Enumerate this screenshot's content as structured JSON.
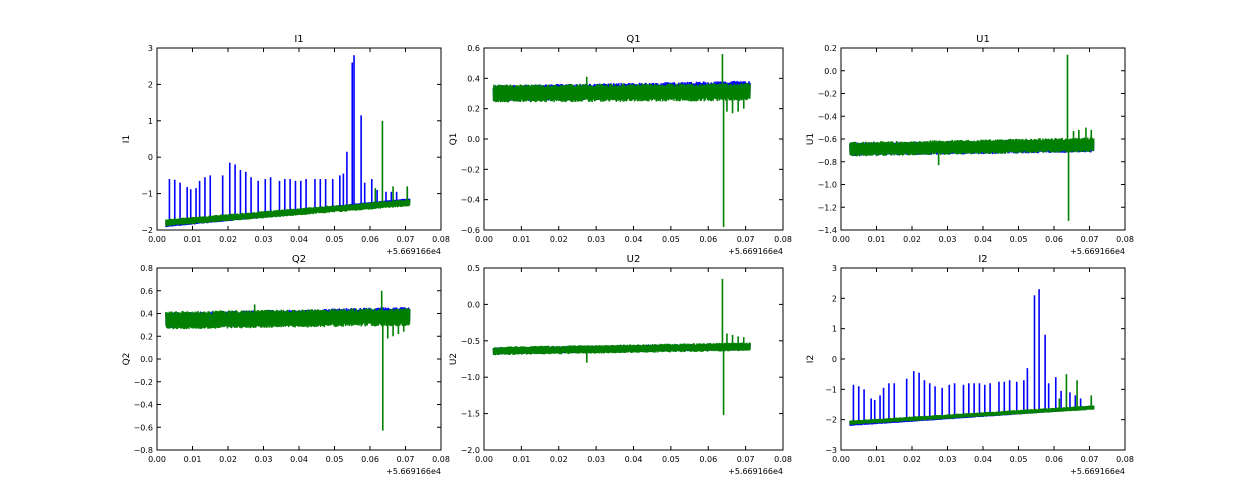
{
  "colors": {
    "series_blue": "#0000ff",
    "series_green": "#007f00",
    "axes": "#000000",
    "background": "#ffffff"
  },
  "chart_data": [
    {
      "type": "line",
      "title": "I1",
      "ylabel": "I1",
      "xlabel": "",
      "x_offset_label": "+5.669166e4",
      "xlim": [
        0.0,
        0.08
      ],
      "ylim": [
        -2,
        3
      ],
      "xticks": [
        "0.00",
        "0.01",
        "0.02",
        "0.03",
        "0.04",
        "0.05",
        "0.06",
        "0.07",
        "0.08"
      ],
      "yticks": [
        "−2",
        "−1",
        "0",
        "1",
        "2",
        "3"
      ],
      "grid": false,
      "series": [
        {
          "color": "blue",
          "x_range": [
            0.0025,
            0.0712
          ],
          "baseline": [
            -1.85,
            -1.2
          ],
          "band": 0.15,
          "spikes": [
            [
              0.0035,
              -0.6
            ],
            [
              0.005,
              -0.62
            ],
            [
              0.0065,
              -0.7
            ],
            [
              0.0085,
              -0.82
            ],
            [
              0.0095,
              -0.88
            ],
            [
              0.011,
              -0.85
            ],
            [
              0.012,
              -0.65
            ],
            [
              0.0135,
              -0.55
            ],
            [
              0.015,
              -0.5
            ],
            [
              0.0185,
              -0.5
            ],
            [
              0.0205,
              -0.15
            ],
            [
              0.022,
              -0.2
            ],
            [
              0.0235,
              -0.35
            ],
            [
              0.025,
              -0.4
            ],
            [
              0.0265,
              -0.55
            ],
            [
              0.0285,
              -0.65
            ],
            [
              0.0305,
              -0.6
            ],
            [
              0.032,
              -0.55
            ],
            [
              0.0345,
              -0.65
            ],
            [
              0.036,
              -0.6
            ],
            [
              0.0375,
              -0.6
            ],
            [
              0.039,
              -0.65
            ],
            [
              0.0405,
              -0.65
            ],
            [
              0.042,
              -0.6
            ],
            [
              0.0445,
              -0.6
            ],
            [
              0.046,
              -0.6
            ],
            [
              0.0475,
              -0.6
            ],
            [
              0.0495,
              -0.6
            ],
            [
              0.0515,
              -0.5
            ],
            [
              0.0525,
              -0.45
            ],
            [
              0.0535,
              0.15
            ],
            [
              0.055,
              2.6
            ],
            [
              0.0555,
              2.8
            ],
            [
              0.0575,
              1.15
            ],
            [
              0.0585,
              -0.7
            ],
            [
              0.0605,
              -0.6
            ],
            [
              0.062,
              -0.9
            ],
            [
              0.0645,
              -0.95
            ],
            [
              0.066,
              -0.95
            ],
            [
              0.0675,
              -0.95
            ],
            [
              0.0705,
              -0.85
            ]
          ]
        },
        {
          "color": "green",
          "x_range": [
            0.0025,
            0.0712
          ],
          "baseline": [
            -1.8,
            -1.25
          ],
          "band": 0.2,
          "spikes": [
            [
              0.0635,
              1.0
            ],
            [
              0.0615,
              -0.85
            ],
            [
              0.0665,
              -0.8
            ],
            [
              0.0705,
              -0.8
            ]
          ]
        }
      ]
    },
    {
      "type": "line",
      "title": "Q1",
      "ylabel": "Q1",
      "xlabel": "",
      "x_offset_label": "+5.669166e4",
      "xlim": [
        0.0,
        0.08
      ],
      "ylim": [
        -0.6,
        0.6
      ],
      "xticks": [
        "0.00",
        "0.01",
        "0.02",
        "0.03",
        "0.04",
        "0.05",
        "0.06",
        "0.07",
        "0.08"
      ],
      "yticks": [
        "−0.6",
        "−0.4",
        "−0.2",
        "0.0",
        "0.2",
        "0.4",
        "0.6"
      ],
      "grid": false,
      "series": [
        {
          "color": "blue",
          "x_range": [
            0.0025,
            0.0712
          ],
          "baseline": [
            0.3,
            0.33
          ],
          "band": 0.11,
          "spikes": []
        },
        {
          "color": "green",
          "x_range": [
            0.0025,
            0.0712
          ],
          "baseline": [
            0.3,
            0.31
          ],
          "band": 0.12,
          "spikes": [
            [
              0.0275,
              0.41
            ],
            [
              0.0638,
              0.56
            ],
            [
              0.0641,
              -0.58
            ],
            [
              0.065,
              0.18
            ],
            [
              0.0665,
              0.17
            ],
            [
              0.068,
              0.18
            ],
            [
              0.0695,
              0.2
            ]
          ]
        }
      ]
    },
    {
      "type": "line",
      "title": "U1",
      "ylabel": "U1",
      "xlabel": "",
      "x_offset_label": "+5.669166e4",
      "xlim": [
        0.0,
        0.08
      ],
      "ylim": [
        -1.4,
        0.2
      ],
      "xticks": [
        "0.00",
        "0.01",
        "0.02",
        "0.03",
        "0.04",
        "0.05",
        "0.06",
        "0.07",
        "0.08"
      ],
      "yticks": [
        "−1.4",
        "−1.2",
        "−1.0",
        "−0.8",
        "−0.6",
        "−0.4",
        "−0.2",
        "0.0",
        "0.2"
      ],
      "grid": false,
      "series": [
        {
          "color": "blue",
          "x_range": [
            0.0025,
            0.0712
          ],
          "baseline": [
            -0.69,
            -0.66
          ],
          "band": 0.12,
          "spikes": []
        },
        {
          "color": "green",
          "x_range": [
            0.0025,
            0.0712
          ],
          "baseline": [
            -0.69,
            -0.65
          ],
          "band": 0.13,
          "spikes": [
            [
              0.0275,
              -0.83
            ],
            [
              0.0638,
              0.14
            ],
            [
              0.0641,
              -1.32
            ],
            [
              0.0655,
              -0.53
            ],
            [
              0.067,
              -0.52
            ],
            [
              0.069,
              -0.5
            ],
            [
              0.0705,
              -0.52
            ]
          ]
        }
      ]
    },
    {
      "type": "line",
      "title": "Q2",
      "ylabel": "Q2",
      "xlabel": "",
      "x_offset_label": "+5.669166e4",
      "xlim": [
        0.0,
        0.08
      ],
      "ylim": [
        -0.8,
        0.8
      ],
      "xticks": [
        "0.00",
        "0.01",
        "0.02",
        "0.03",
        "0.04",
        "0.05",
        "0.06",
        "0.07",
        "0.08"
      ],
      "yticks": [
        "−0.8",
        "−0.6",
        "−0.4",
        "−0.2",
        "0.0",
        "0.2",
        "0.4",
        "0.6",
        "0.8"
      ],
      "grid": false,
      "series": [
        {
          "color": "blue",
          "x_range": [
            0.0025,
            0.0712
          ],
          "baseline": [
            0.34,
            0.39
          ],
          "band": 0.14,
          "spikes": []
        },
        {
          "color": "green",
          "x_range": [
            0.0025,
            0.0712
          ],
          "baseline": [
            0.34,
            0.37
          ],
          "band": 0.16,
          "spikes": [
            [
              0.0275,
              0.48
            ],
            [
              0.0633,
              0.6
            ],
            [
              0.0636,
              -0.63
            ],
            [
              0.065,
              0.18
            ],
            [
              0.0665,
              0.2
            ],
            [
              0.068,
              0.22
            ],
            [
              0.0695,
              0.24
            ]
          ]
        }
      ]
    },
    {
      "type": "line",
      "title": "U2",
      "ylabel": "U2",
      "xlabel": "",
      "x_offset_label": "+5.669166e4",
      "xlim": [
        0.0,
        0.08
      ],
      "ylim": [
        -2.0,
        0.5
      ],
      "xticks": [
        "0.00",
        "0.01",
        "0.02",
        "0.03",
        "0.04",
        "0.05",
        "0.06",
        "0.07",
        "0.08"
      ],
      "yticks": [
        "−2.0",
        "−1.5",
        "−1.0",
        "−0.5",
        "0.0",
        "0.5"
      ],
      "grid": false,
      "series": [
        {
          "color": "blue",
          "x_range": [
            0.0025,
            0.0712
          ],
          "baseline": [
            -0.64,
            -0.58
          ],
          "band": 0.1,
          "spikes": []
        },
        {
          "color": "green",
          "x_range": [
            0.0025,
            0.0712
          ],
          "baseline": [
            -0.64,
            -0.58
          ],
          "band": 0.12,
          "spikes": [
            [
              0.0275,
              -0.8
            ],
            [
              0.0638,
              0.35
            ],
            [
              0.0641,
              -1.52
            ],
            [
              0.065,
              -0.4
            ],
            [
              0.0665,
              -0.42
            ],
            [
              0.068,
              -0.44
            ],
            [
              0.0695,
              -0.45
            ]
          ]
        }
      ]
    },
    {
      "type": "line",
      "title": "I2",
      "ylabel": "I2",
      "xlabel": "",
      "x_offset_label": "+5.669166e4",
      "xlim": [
        0.0,
        0.08
      ],
      "ylim": [
        -3,
        3
      ],
      "xticks": [
        "0.00",
        "0.01",
        "0.02",
        "0.03",
        "0.04",
        "0.05",
        "0.06",
        "0.07",
        "0.08"
      ],
      "yticks": [
        "−3",
        "−2",
        "−1",
        "0",
        "1",
        "2",
        "3"
      ],
      "grid": false,
      "series": [
        {
          "color": "blue",
          "x_range": [
            0.0025,
            0.0712
          ],
          "baseline": [
            -2.15,
            -1.6
          ],
          "band": 0.12,
          "spikes": [
            [
              0.0035,
              -0.85
            ],
            [
              0.005,
              -0.9
            ],
            [
              0.0065,
              -1.0
            ],
            [
              0.0085,
              -1.3
            ],
            [
              0.0095,
              -1.35
            ],
            [
              0.011,
              -1.2
            ],
            [
              0.012,
              -0.95
            ],
            [
              0.0135,
              -0.8
            ],
            [
              0.015,
              -0.8
            ],
            [
              0.0185,
              -0.65
            ],
            [
              0.0205,
              -0.4
            ],
            [
              0.022,
              -0.45
            ],
            [
              0.0235,
              -0.7
            ],
            [
              0.025,
              -0.8
            ],
            [
              0.0265,
              -0.9
            ],
            [
              0.0285,
              -0.95
            ],
            [
              0.0305,
              -0.85
            ],
            [
              0.032,
              -0.8
            ],
            [
              0.0345,
              -0.85
            ],
            [
              0.036,
              -0.8
            ],
            [
              0.0375,
              -0.8
            ],
            [
              0.039,
              -0.8
            ],
            [
              0.0405,
              -0.85
            ],
            [
              0.042,
              -0.8
            ],
            [
              0.0445,
              -0.75
            ],
            [
              0.046,
              -0.75
            ],
            [
              0.0475,
              -0.7
            ],
            [
              0.0495,
              -0.75
            ],
            [
              0.0515,
              -0.7
            ],
            [
              0.0525,
              -0.3
            ],
            [
              0.0545,
              2.1
            ],
            [
              0.0558,
              2.3
            ],
            [
              0.0575,
              0.8
            ],
            [
              0.0585,
              -0.8
            ],
            [
              0.0605,
              -0.6
            ],
            [
              0.062,
              -1.05
            ],
            [
              0.0645,
              -1.1
            ],
            [
              0.066,
              -1.2
            ],
            [
              0.0675,
              -1.3
            ],
            [
              0.0705,
              -1.3
            ]
          ]
        },
        {
          "color": "green",
          "x_range": [
            0.0025,
            0.0712
          ],
          "baseline": [
            -2.1,
            -1.6
          ],
          "band": 0.15,
          "spikes": [
            [
              0.0635,
              -0.5
            ],
            [
              0.0615,
              -1.3
            ],
            [
              0.0665,
              -0.7
            ],
            [
              0.0705,
              -1.2
            ]
          ]
        }
      ]
    }
  ]
}
